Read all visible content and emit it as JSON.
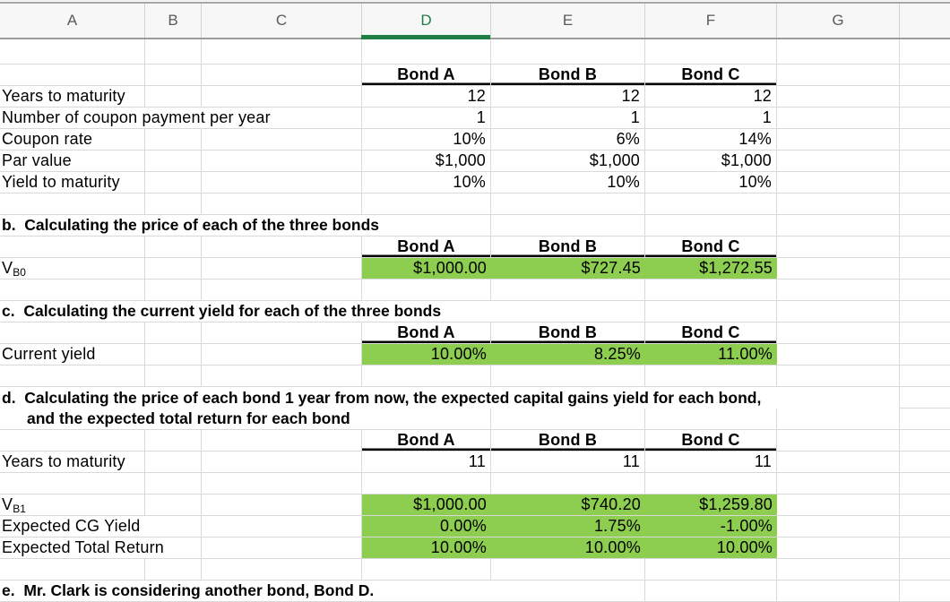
{
  "spreadsheet": {
    "column_headers": [
      "A",
      "B",
      "C",
      "D",
      "E",
      "F",
      "G",
      ""
    ],
    "selected_column": "D"
  },
  "colors": {
    "highlight_fill_green": "#8dce50",
    "selected_header_green": "#1e7e44",
    "grid_line": "#d9d9d9",
    "bond_header_border": "#000000"
  },
  "sheet": {
    "rows": [
      {
        "blank": true
      },
      {
        "cells": [
          {
            "c": 0,
            "k": "e"
          },
          {
            "c": 1,
            "k": "e"
          },
          {
            "c": 2,
            "k": "e"
          },
          {
            "c": 3,
            "k": "bh",
            "t": "Bond A"
          },
          {
            "c": 4,
            "k": "bh",
            "t": "Bond B"
          },
          {
            "c": 5,
            "k": "bh",
            "t": "Bond C"
          },
          {
            "c": 6,
            "k": "e"
          },
          {
            "c": 7,
            "k": "e"
          }
        ]
      },
      {
        "cells": [
          {
            "c": 0,
            "k": "lb",
            "t": "Years to maturity"
          },
          {
            "c": 1,
            "k": "e"
          },
          {
            "c": 2,
            "k": "e"
          },
          {
            "c": 3,
            "k": "v",
            "t": "12"
          },
          {
            "c": 4,
            "k": "v",
            "t": "12"
          },
          {
            "c": 5,
            "k": "v",
            "t": "12"
          },
          {
            "c": 6,
            "k": "e"
          },
          {
            "c": 7,
            "k": "e"
          }
        ]
      },
      {
        "cells": [
          {
            "c": 0,
            "s": 3,
            "k": "lb",
            "t": "Number of coupon payment per year"
          },
          {
            "c": 3,
            "k": "v",
            "t": "1"
          },
          {
            "c": 4,
            "k": "v",
            "t": "1"
          },
          {
            "c": 5,
            "k": "v",
            "t": "1"
          },
          {
            "c": 6,
            "k": "e"
          },
          {
            "c": 7,
            "k": "e"
          }
        ]
      },
      {
        "cells": [
          {
            "c": 0,
            "k": "lb",
            "t": "Coupon rate"
          },
          {
            "c": 1,
            "k": "e"
          },
          {
            "c": 2,
            "k": "e"
          },
          {
            "c": 3,
            "k": "v",
            "t": "10%"
          },
          {
            "c": 4,
            "k": "v",
            "t": "6%"
          },
          {
            "c": 5,
            "k": "v",
            "t": "14%"
          },
          {
            "c": 6,
            "k": "e"
          },
          {
            "c": 7,
            "k": "e"
          }
        ]
      },
      {
        "cells": [
          {
            "c": 0,
            "k": "lb",
            "t": "Par value"
          },
          {
            "c": 1,
            "k": "e"
          },
          {
            "c": 2,
            "k": "e"
          },
          {
            "c": 3,
            "k": "v",
            "t": "$1,000"
          },
          {
            "c": 4,
            "k": "v",
            "t": "$1,000"
          },
          {
            "c": 5,
            "k": "v",
            "t": "$1,000"
          },
          {
            "c": 6,
            "k": "e"
          },
          {
            "c": 7,
            "k": "e"
          }
        ]
      },
      {
        "cells": [
          {
            "c": 0,
            "k": "lb",
            "t": "Yield to maturity"
          },
          {
            "c": 1,
            "k": "e"
          },
          {
            "c": 2,
            "k": "e"
          },
          {
            "c": 3,
            "k": "v",
            "t": "10%"
          },
          {
            "c": 4,
            "k": "v",
            "t": "10%"
          },
          {
            "c": 5,
            "k": "v",
            "t": "10%"
          },
          {
            "c": 6,
            "k": "e"
          },
          {
            "c": 7,
            "k": "e"
          }
        ]
      },
      {
        "blank": true
      },
      {
        "cells": [
          {
            "c": 0,
            "s": 4,
            "k": "h",
            "t": "b.  Calculating the price of each of the three bonds"
          },
          {
            "c": 4,
            "k": "e"
          },
          {
            "c": 5,
            "k": "e"
          },
          {
            "c": 6,
            "k": "e"
          },
          {
            "c": 7,
            "k": "e"
          }
        ]
      },
      {
        "cells": [
          {
            "c": 0,
            "k": "e"
          },
          {
            "c": 1,
            "k": "e"
          },
          {
            "c": 2,
            "k": "e"
          },
          {
            "c": 3,
            "k": "bh",
            "t": "Bond A"
          },
          {
            "c": 4,
            "k": "bh",
            "t": "Bond B"
          },
          {
            "c": 5,
            "k": "bh",
            "t": "Bond C"
          },
          {
            "c": 6,
            "k": "e"
          },
          {
            "c": 7,
            "k": "e"
          }
        ]
      },
      {
        "cells": [
          {
            "c": 0,
            "k": "vs",
            "t": "V",
            "sub": "B0"
          },
          {
            "c": 1,
            "k": "e"
          },
          {
            "c": 2,
            "k": "e"
          },
          {
            "c": 3,
            "k": "g",
            "t": "$1,000.00"
          },
          {
            "c": 4,
            "k": "g",
            "t": "$727.45"
          },
          {
            "c": 5,
            "k": "g",
            "t": "$1,272.55"
          },
          {
            "c": 6,
            "k": "e"
          },
          {
            "c": 7,
            "k": "e"
          }
        ]
      },
      {
        "blank": true
      },
      {
        "cells": [
          {
            "c": 0,
            "s": 5,
            "k": "h",
            "t": "c.  Calculating the current yield for each of the three bonds"
          },
          {
            "c": 5,
            "k": "e"
          },
          {
            "c": 6,
            "k": "e"
          },
          {
            "c": 7,
            "k": "e"
          }
        ]
      },
      {
        "cells": [
          {
            "c": 0,
            "k": "e"
          },
          {
            "c": 1,
            "k": "e"
          },
          {
            "c": 2,
            "k": "e"
          },
          {
            "c": 3,
            "k": "bh",
            "t": "Bond A"
          },
          {
            "c": 4,
            "k": "bh",
            "t": "Bond B"
          },
          {
            "c": 5,
            "k": "bh",
            "t": "Bond C"
          },
          {
            "c": 6,
            "k": "e"
          },
          {
            "c": 7,
            "k": "e"
          }
        ]
      },
      {
        "cells": [
          {
            "c": 0,
            "k": "lb",
            "t": "Current yield"
          },
          {
            "c": 1,
            "k": "e"
          },
          {
            "c": 2,
            "k": "e"
          },
          {
            "c": 3,
            "k": "g",
            "t": "10.00%"
          },
          {
            "c": 4,
            "k": "g",
            "t": "8.25%"
          },
          {
            "c": 5,
            "k": "g",
            "t": "11.00%"
          },
          {
            "c": 6,
            "k": "e"
          },
          {
            "c": 7,
            "k": "e"
          }
        ]
      },
      {
        "blank": true
      },
      {
        "nbb": true,
        "cells": [
          {
            "c": 0,
            "s": 7,
            "k": "h",
            "t": "d.  Calculating the price of each bond 1 year from now, the expected capital gains yield for each bond,"
          },
          {
            "c": 7,
            "k": "e",
            "bb": true
          }
        ]
      },
      {
        "cells": [
          {
            "c": 0,
            "s": 4,
            "k": "h2",
            "t": "and the expected total return for each bond"
          },
          {
            "c": 4,
            "k": "e"
          },
          {
            "c": 5,
            "k": "e"
          },
          {
            "c": 6,
            "k": "e"
          },
          {
            "c": 7,
            "k": "e"
          }
        ]
      },
      {
        "cells": [
          {
            "c": 0,
            "k": "e"
          },
          {
            "c": 1,
            "k": "e"
          },
          {
            "c": 2,
            "k": "e"
          },
          {
            "c": 3,
            "k": "bh",
            "t": "Bond A"
          },
          {
            "c": 4,
            "k": "bh",
            "t": "Bond B"
          },
          {
            "c": 5,
            "k": "bh",
            "t": "Bond C"
          },
          {
            "c": 6,
            "k": "e"
          },
          {
            "c": 7,
            "k": "e"
          }
        ]
      },
      {
        "cells": [
          {
            "c": 0,
            "k": "lb",
            "t": "Years to maturity"
          },
          {
            "c": 1,
            "k": "e"
          },
          {
            "c": 2,
            "k": "e"
          },
          {
            "c": 3,
            "k": "v",
            "t": "11"
          },
          {
            "c": 4,
            "k": "v",
            "t": "11"
          },
          {
            "c": 5,
            "k": "v",
            "t": "11"
          },
          {
            "c": 6,
            "k": "e"
          },
          {
            "c": 7,
            "k": "e"
          }
        ]
      },
      {
        "blank": true
      },
      {
        "cells": [
          {
            "c": 0,
            "k": "vs",
            "t": "V",
            "sub": "B1"
          },
          {
            "c": 1,
            "k": "e"
          },
          {
            "c": 2,
            "k": "e"
          },
          {
            "c": 3,
            "k": "g",
            "t": "$1,000.00"
          },
          {
            "c": 4,
            "k": "g",
            "t": "$740.20"
          },
          {
            "c": 5,
            "k": "g",
            "t": "$1,259.80"
          },
          {
            "c": 6,
            "k": "e"
          },
          {
            "c": 7,
            "k": "e"
          }
        ]
      },
      {
        "cells": [
          {
            "c": 0,
            "s": 2,
            "k": "lb",
            "t": "Expected CG Yield"
          },
          {
            "c": 2,
            "k": "e"
          },
          {
            "c": 3,
            "k": "g",
            "t": "0.00%"
          },
          {
            "c": 4,
            "k": "g",
            "t": "1.75%"
          },
          {
            "c": 5,
            "k": "g",
            "t": "-1.00%"
          },
          {
            "c": 6,
            "k": "e"
          },
          {
            "c": 7,
            "k": "e"
          }
        ]
      },
      {
        "cells": [
          {
            "c": 0,
            "s": 2,
            "k": "lb",
            "t": "Expected Total Return"
          },
          {
            "c": 2,
            "k": "e"
          },
          {
            "c": 3,
            "k": "g",
            "t": "10.00%"
          },
          {
            "c": 4,
            "k": "g",
            "t": "10.00%"
          },
          {
            "c": 5,
            "k": "g",
            "t": "10.00%"
          },
          {
            "c": 6,
            "k": "e"
          },
          {
            "c": 7,
            "k": "e"
          }
        ]
      },
      {
        "blank": true
      },
      {
        "cells": [
          {
            "c": 0,
            "s": 5,
            "k": "h",
            "t": "e.  Mr. Clark is considering another bond, Bond D."
          },
          {
            "c": 5,
            "k": "e"
          },
          {
            "c": 6,
            "k": "e"
          },
          {
            "c": 7,
            "k": "e"
          }
        ]
      }
    ]
  }
}
